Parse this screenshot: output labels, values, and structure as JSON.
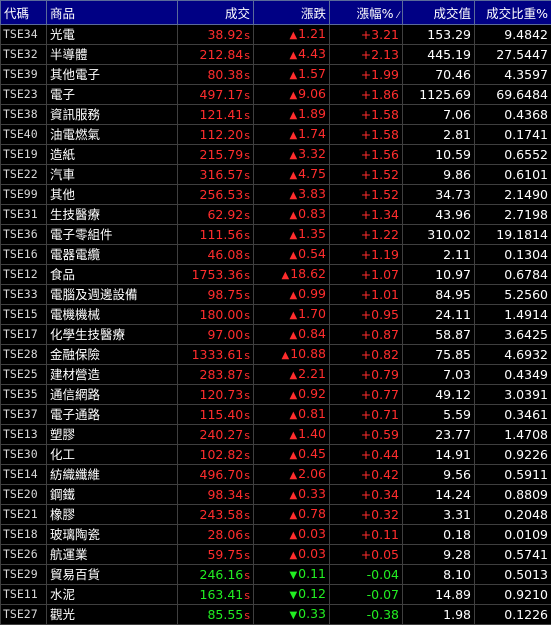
{
  "headers": {
    "code": "代碼",
    "name": "商品",
    "price": "成交",
    "change": "漲跌",
    "pct": "漲幅%",
    "volume": "成交值",
    "ratio": "成交比重%"
  },
  "rows": [
    {
      "code": "TSE34",
      "name": "光電",
      "price": "38.92",
      "flag": "s",
      "dir": "up",
      "change": "1.21",
      "pct": "+3.21",
      "volume": "153.29",
      "ratio": "9.4842"
    },
    {
      "code": "TSE32",
      "name": "半導體",
      "price": "212.84",
      "flag": "s",
      "dir": "up",
      "change": "4.43",
      "pct": "+2.13",
      "volume": "445.19",
      "ratio": "27.5447"
    },
    {
      "code": "TSE39",
      "name": "其他電子",
      "price": "80.38",
      "flag": "s",
      "dir": "up",
      "change": "1.57",
      "pct": "+1.99",
      "volume": "70.46",
      "ratio": "4.3597"
    },
    {
      "code": "TSE23",
      "name": "電子",
      "price": "497.17",
      "flag": "s",
      "dir": "up",
      "change": "9.06",
      "pct": "+1.86",
      "volume": "1125.69",
      "ratio": "69.6484"
    },
    {
      "code": "TSE38",
      "name": "資訊服務",
      "price": "121.41",
      "flag": "s",
      "dir": "up",
      "change": "1.89",
      "pct": "+1.58",
      "volume": "7.06",
      "ratio": "0.4368"
    },
    {
      "code": "TSE40",
      "name": "油電燃氣",
      "price": "112.20",
      "flag": "s",
      "dir": "up",
      "change": "1.74",
      "pct": "+1.58",
      "volume": "2.81",
      "ratio": "0.1741"
    },
    {
      "code": "TSE19",
      "name": "造紙",
      "price": "215.79",
      "flag": "s",
      "dir": "up",
      "change": "3.32",
      "pct": "+1.56",
      "volume": "10.59",
      "ratio": "0.6552"
    },
    {
      "code": "TSE22",
      "name": "汽車",
      "price": "316.57",
      "flag": "s",
      "dir": "up",
      "change": "4.75",
      "pct": "+1.52",
      "volume": "9.86",
      "ratio": "0.6101"
    },
    {
      "code": "TSE99",
      "name": "其他",
      "price": "256.53",
      "flag": "s",
      "dir": "up",
      "change": "3.83",
      "pct": "+1.52",
      "volume": "34.73",
      "ratio": "2.1490"
    },
    {
      "code": "TSE31",
      "name": "生技醫療",
      "price": "62.92",
      "flag": "s",
      "dir": "up",
      "change": "0.83",
      "pct": "+1.34",
      "volume": "43.96",
      "ratio": "2.7198"
    },
    {
      "code": "TSE36",
      "name": "電子零組件",
      "price": "111.56",
      "flag": "s",
      "dir": "up",
      "change": "1.35",
      "pct": "+1.22",
      "volume": "310.02",
      "ratio": "19.1814"
    },
    {
      "code": "TSE16",
      "name": "電器電纜",
      "price": "46.08",
      "flag": "s",
      "dir": "up",
      "change": "0.54",
      "pct": "+1.19",
      "volume": "2.11",
      "ratio": "0.1304"
    },
    {
      "code": "TSE12",
      "name": "食品",
      "price": "1753.36",
      "flag": "s",
      "dir": "up",
      "change": "18.62",
      "pct": "+1.07",
      "volume": "10.97",
      "ratio": "0.6784"
    },
    {
      "code": "TSE33",
      "name": "電腦及週邊設備",
      "price": "98.75",
      "flag": "s",
      "dir": "up",
      "change": "0.99",
      "pct": "+1.01",
      "volume": "84.95",
      "ratio": "5.2560"
    },
    {
      "code": "TSE15",
      "name": "電機機械",
      "price": "180.00",
      "flag": "s",
      "dir": "up",
      "change": "1.70",
      "pct": "+0.95",
      "volume": "24.11",
      "ratio": "1.4914"
    },
    {
      "code": "TSE17",
      "name": "化學生技醫療",
      "price": "97.00",
      "flag": "s",
      "dir": "up",
      "change": "0.84",
      "pct": "+0.87",
      "volume": "58.87",
      "ratio": "3.6425"
    },
    {
      "code": "TSE28",
      "name": "金融保險",
      "price": "1333.61",
      "flag": "s",
      "dir": "up",
      "change": "10.88",
      "pct": "+0.82",
      "volume": "75.85",
      "ratio": "4.6932"
    },
    {
      "code": "TSE25",
      "name": "建材營造",
      "price": "283.87",
      "flag": "s",
      "dir": "up",
      "change": "2.21",
      "pct": "+0.79",
      "volume": "7.03",
      "ratio": "0.4349"
    },
    {
      "code": "TSE35",
      "name": "通信網路",
      "price": "120.73",
      "flag": "s",
      "dir": "up",
      "change": "0.92",
      "pct": "+0.77",
      "volume": "49.12",
      "ratio": "3.0391"
    },
    {
      "code": "TSE37",
      "name": "電子通路",
      "price": "115.40",
      "flag": "s",
      "dir": "up",
      "change": "0.81",
      "pct": "+0.71",
      "volume": "5.59",
      "ratio": "0.3461"
    },
    {
      "code": "TSE13",
      "name": "塑膠",
      "price": "240.27",
      "flag": "s",
      "dir": "up",
      "change": "1.40",
      "pct": "+0.59",
      "volume": "23.77",
      "ratio": "1.4708"
    },
    {
      "code": "TSE30",
      "name": "化工",
      "price": "102.82",
      "flag": "s",
      "dir": "up",
      "change": "0.45",
      "pct": "+0.44",
      "volume": "14.91",
      "ratio": "0.9226"
    },
    {
      "code": "TSE14",
      "name": "紡織纖維",
      "price": "496.70",
      "flag": "s",
      "dir": "up",
      "change": "2.06",
      "pct": "+0.42",
      "volume": "9.56",
      "ratio": "0.5911"
    },
    {
      "code": "TSE20",
      "name": "鋼鐵",
      "price": "98.34",
      "flag": "s",
      "dir": "up",
      "change": "0.33",
      "pct": "+0.34",
      "volume": "14.24",
      "ratio": "0.8809"
    },
    {
      "code": "TSE21",
      "name": "橡膠",
      "price": "243.58",
      "flag": "s",
      "dir": "up",
      "change": "0.78",
      "pct": "+0.32",
      "volume": "3.31",
      "ratio": "0.2048"
    },
    {
      "code": "TSE18",
      "name": "玻璃陶瓷",
      "price": "28.06",
      "flag": "s",
      "dir": "up",
      "change": "0.03",
      "pct": "+0.11",
      "volume": "0.18",
      "ratio": "0.0109"
    },
    {
      "code": "TSE26",
      "name": "航運業",
      "price": "59.75",
      "flag": "s",
      "dir": "up",
      "change": "0.03",
      "pct": "+0.05",
      "volume": "9.28",
      "ratio": "0.5741"
    },
    {
      "code": "TSE29",
      "name": "貿易百貨",
      "price": "246.16",
      "flag": "s",
      "dir": "down",
      "change": "0.11",
      "pct": "-0.04",
      "volume": "8.10",
      "ratio": "0.5013"
    },
    {
      "code": "TSE11",
      "name": "水泥",
      "price": "163.41",
      "flag": "s",
      "dir": "down",
      "change": "0.12",
      "pct": "-0.07",
      "volume": "14.89",
      "ratio": "0.9210"
    },
    {
      "code": "TSE27",
      "name": "觀光",
      "price": "85.55",
      "flag": "s",
      "dir": "down",
      "change": "0.33",
      "pct": "-0.38",
      "volume": "1.98",
      "ratio": "0.1226"
    }
  ],
  "colors": {
    "header_bg": "#000084",
    "up": "#ff2d2d",
    "down": "#22ee22"
  },
  "icons": {
    "up_arrow": "▲",
    "down_arrow": "▼",
    "sort": "sort-descending-icon"
  }
}
